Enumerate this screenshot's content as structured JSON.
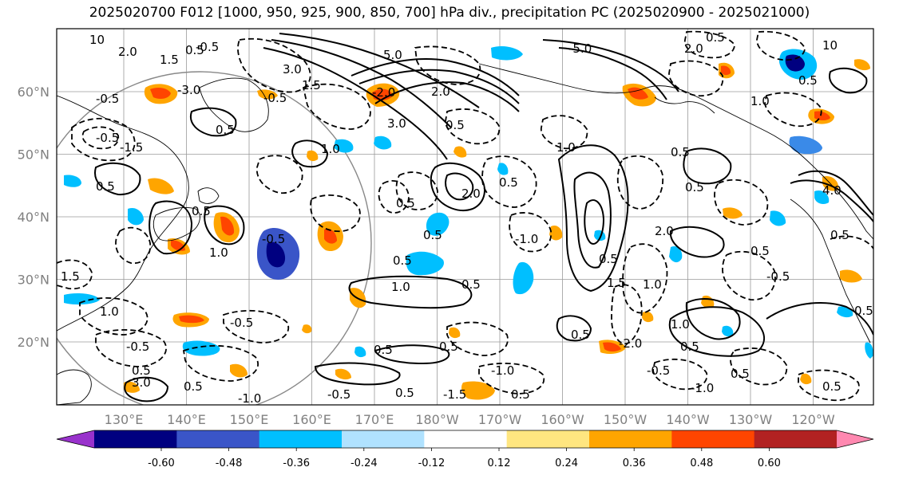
{
  "title": "2025020700 F012 [1000, 950, 925, 900, 850, 700] hPa div., precipitation PC (2025020900 - 2025021000)",
  "map": {
    "lon_labels": [
      "130°E",
      "140°E",
      "150°E",
      "160°E",
      "170°E",
      "180°W",
      "170°W",
      "160°W",
      "150°W",
      "140°W",
      "130°W",
      "120°W"
    ],
    "lat_labels": [
      "60°N",
      "50°N",
      "40°N",
      "30°N",
      "20°N"
    ],
    "contour_labels": [
      "0.5",
      "-0.5",
      "1.0",
      "-1.0",
      "1.5",
      "-1.5",
      "2.0",
      "-2.0",
      "3.0",
      "-3.0",
      "5.0",
      "-5.0",
      "4.0",
      "10"
    ]
  },
  "colorbar": {
    "ticks": [
      "-0.60",
      "-0.48",
      "-0.36",
      "-0.24",
      "-0.12",
      "0.12",
      "0.24",
      "0.36",
      "0.48",
      "0.60"
    ],
    "colors": [
      "#9932cc",
      "#000080",
      "#3a55c8",
      "#00bfff",
      "#b0e2ff",
      "#ffffff",
      "#ffe680",
      "#ffa500",
      "#ff4500",
      "#b22222",
      "#ff88b0"
    ]
  }
}
